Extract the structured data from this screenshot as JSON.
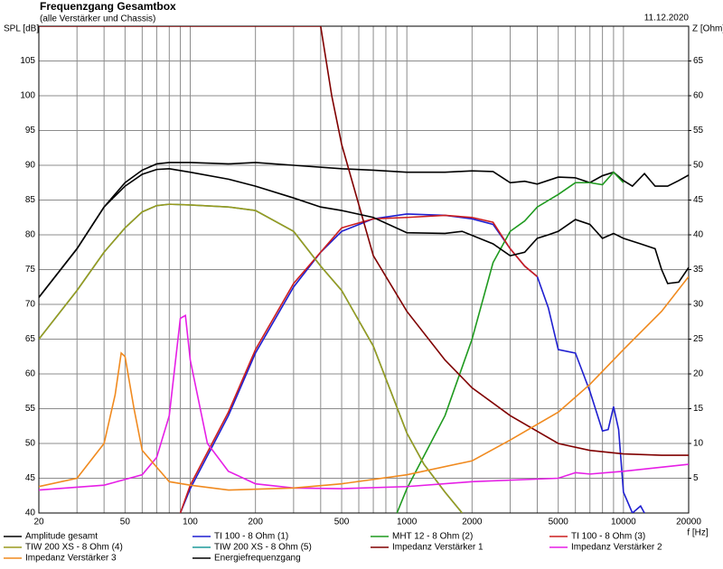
{
  "chart_data": {
    "type": "line",
    "title": "Frequenzgang Gesamtbox",
    "subtitle": "(alle Verstärker und Chassis)",
    "date": "11.12.2020",
    "y_label": "SPL [dB]",
    "y2_label": "Z [Ohm]",
    "x_label": "f [Hz]",
    "x_scale": "log",
    "grid": true,
    "xlim": [
      20,
      20000
    ],
    "xticks": [
      20,
      50,
      100,
      200,
      500,
      1000,
      2000,
      5000,
      10000,
      20000
    ],
    "x_minor_ticks": [
      30,
      40,
      60,
      70,
      80,
      90,
      300,
      400,
      600,
      700,
      800,
      900,
      3000,
      4000,
      6000,
      7000,
      8000,
      9000
    ],
    "ylim": [
      40,
      110
    ],
    "yticks": [
      40,
      45,
      50,
      55,
      60,
      65,
      70,
      75,
      80,
      85,
      90,
      95,
      100,
      105
    ],
    "y2lim": [
      0,
      70
    ],
    "y2ticks": [
      5,
      10,
      15,
      20,
      25,
      30,
      35,
      40,
      45,
      50,
      55,
      60,
      65
    ],
    "series": [
      {
        "name": "Amplitude gesamt",
        "color": "#000000",
        "x": [
          20,
          30,
          40,
          50,
          60,
          70,
          80,
          100,
          150,
          200,
          300,
          500,
          700,
          1000,
          1500,
          2000,
          2500,
          3000,
          3500,
          4000,
          5000,
          6000,
          7000,
          8000,
          9000,
          10000,
          11000,
          12500,
          14000,
          16000,
          18000,
          20000
        ],
        "values": [
          71,
          78,
          84,
          87.5,
          89.3,
          90.2,
          90.4,
          90.4,
          90.2,
          90.4,
          90,
          89.5,
          89.3,
          89,
          89,
          89.2,
          89.1,
          87.5,
          87.7,
          87.3,
          88.3,
          88.2,
          87.5,
          88.5,
          89,
          87.8,
          87,
          88.8,
          87,
          87,
          87.8,
          88.6
        ]
      },
      {
        "name": "TI 100 - 8 Ohm (1)",
        "color": "#1f1fd0",
        "x": [
          90,
          100,
          150,
          200,
          300,
          400,
          500,
          700,
          1000,
          1500,
          2000,
          2500,
          3000,
          3500,
          4000,
          4500,
          5000,
          6000,
          7000,
          8000,
          8500,
          9000,
          9500,
          10000,
          11000,
          12000,
          12500
        ],
        "values": [
          40,
          43.5,
          54,
          63,
          72.5,
          77.5,
          80.5,
          82.3,
          83,
          82.8,
          82.3,
          81.5,
          78,
          75.5,
          74,
          69.5,
          63.5,
          63,
          57.5,
          51.8,
          52,
          55.3,
          52,
          43,
          40,
          41,
          40
        ]
      },
      {
        "name": "MHT 12 - 8 Ohm (2)",
        "color": "#1f9a1f",
        "x": [
          900,
          1000,
          1500,
          2000,
          2500,
          3000,
          3500,
          4000,
          5000,
          6000,
          7000,
          8000,
          9000,
          10000
        ],
        "values": [
          40,
          43.5,
          54,
          65,
          76,
          80.5,
          82,
          84,
          85.8,
          87.5,
          87.5,
          87.2,
          89,
          87.5
        ]
      },
      {
        "name": "TI 100 - 8 Ohm (3)",
        "color": "#cc1f1f",
        "x": [
          90,
          100,
          150,
          200,
          300,
          500,
          700,
          1000,
          1500,
          2000,
          2500,
          3000,
          3500,
          4000
        ],
        "values": [
          40,
          44,
          54.5,
          63.5,
          73,
          81,
          82.3,
          82.5,
          82.8,
          82.5,
          81.8,
          78,
          75.5,
          74
        ]
      },
      {
        "name": "TIW 200 XS - 8 Ohm (4)",
        "color": "#9a9a1f",
        "x": [
          20,
          30,
          40,
          50,
          60,
          70,
          80,
          100,
          150,
          200,
          300,
          400,
          500,
          700,
          1000,
          1200,
          1500,
          1800
        ],
        "values": [
          65,
          72,
          77.5,
          81,
          83.3,
          84.2,
          84.4,
          84.3,
          84,
          83.5,
          80.5,
          75.5,
          72,
          64,
          51.5,
          47,
          43,
          40
        ]
      },
      {
        "name": "TIW 200 XS - 8 Ohm (5)",
        "color": "#1f9a9a",
        "x": [
          20,
          30,
          40,
          50,
          60,
          70,
          80,
          100,
          150,
          200,
          300,
          400,
          500,
          700,
          1000,
          1200,
          1500,
          1800
        ],
        "values": [
          65,
          72,
          77.5,
          81,
          83.3,
          84.2,
          84.4,
          84.3,
          84,
          83.5,
          80.5,
          75.5,
          72,
          64,
          51.5,
          47,
          43,
          40
        ]
      },
      {
        "name": "Impedanz Verstärker 1",
        "color": "#800000",
        "axis": "y2",
        "x": [
          20,
          400,
          450,
          500,
          700,
          1000,
          1500,
          2000,
          3000,
          5000,
          7000,
          10000,
          15000,
          20000
        ],
        "values": [
          70,
          70,
          60,
          53,
          37,
          29,
          22,
          18,
          14,
          10,
          9,
          8.5,
          8.3,
          8.3
        ]
      },
      {
        "name": "Impedanz Verstärker 2",
        "color": "#e61fe6",
        "axis": "y2",
        "x": [
          20,
          40,
          60,
          70,
          80,
          90,
          95,
          100,
          120,
          150,
          200,
          300,
          500,
          1000,
          2000,
          5000,
          6000,
          7000,
          10000,
          20000
        ],
        "values": [
          3.3,
          4,
          5.5,
          8,
          14,
          28,
          28.4,
          22,
          10,
          6,
          4.2,
          3.6,
          3.5,
          3.8,
          4.5,
          5,
          5.8,
          5.6,
          6,
          7
        ]
      },
      {
        "name": "Impedanz Verstärker 3",
        "color": "#f08a1f",
        "axis": "y2",
        "x": [
          20,
          30,
          40,
          45,
          48,
          50,
          55,
          60,
          80,
          100,
          150,
          300,
          500,
          1000,
          2000,
          3000,
          5000,
          7000,
          10000,
          15000,
          20000
        ],
        "values": [
          3.8,
          5,
          10,
          17,
          23,
          22.5,
          15,
          9,
          4.5,
          4,
          3.3,
          3.6,
          4.2,
          5.5,
          7.5,
          10.5,
          14.5,
          18.5,
          23.5,
          29,
          34
        ]
      },
      {
        "name": "Energiefrequenzgang",
        "color": "#000000",
        "x": [
          20,
          30,
          40,
          50,
          60,
          70,
          80,
          100,
          150,
          200,
          300,
          400,
          500,
          700,
          1000,
          1500,
          1800,
          2500,
          3000,
          3500,
          4000,
          4500,
          5000,
          6000,
          7000,
          8000,
          9000,
          10000,
          12000,
          14000,
          15000,
          16000,
          18000,
          20000
        ],
        "values": [
          71,
          78,
          84,
          87,
          88.7,
          89.4,
          89.5,
          89,
          88,
          87,
          85.3,
          84,
          83.5,
          82.5,
          80.3,
          80.2,
          80.5,
          78.7,
          77,
          77.5,
          79.5,
          80,
          80.5,
          82.2,
          81.5,
          79.5,
          80.2,
          79.5,
          78.7,
          78,
          75,
          73,
          73.2,
          75.3
        ]
      }
    ]
  }
}
